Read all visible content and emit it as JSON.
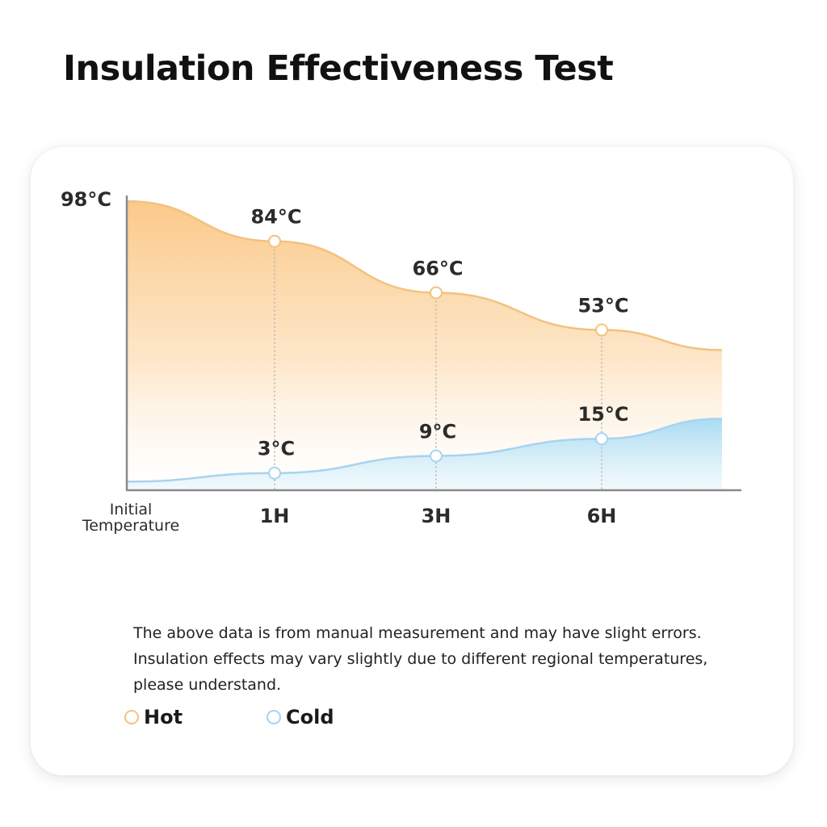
{
  "page": {
    "title": "Insulation Effectiveness Test"
  },
  "chart_data": {
    "type": "area",
    "categories": [
      "Initial Temperature",
      "1H",
      "3H",
      "6H"
    ],
    "category_lines": [
      "Initial",
      "Temperature"
    ],
    "series": [
      {
        "name": "Hot",
        "color": "#f2c27f",
        "values": [
          98,
          84,
          66,
          53
        ],
        "labels": [
          "98°C",
          "84°C",
          "66°C",
          "53°C"
        ],
        "trailing_value": 46
      },
      {
        "name": "Cold",
        "color": "#a9d3ef",
        "values": [
          0,
          3,
          9,
          15
        ],
        "labels": [
          "",
          "3°C",
          "9°C",
          "15°C"
        ],
        "trailing_value": 22
      }
    ],
    "ylim": [
      -3,
      100
    ],
    "grid": false,
    "legend_position": "bottom-left"
  },
  "notes": {
    "line1": "The above data is from manual measurement and may have slight errors.",
    "line2": "Insulation effects may vary slightly due to different regional temperatures,",
    "line3": "please understand."
  }
}
